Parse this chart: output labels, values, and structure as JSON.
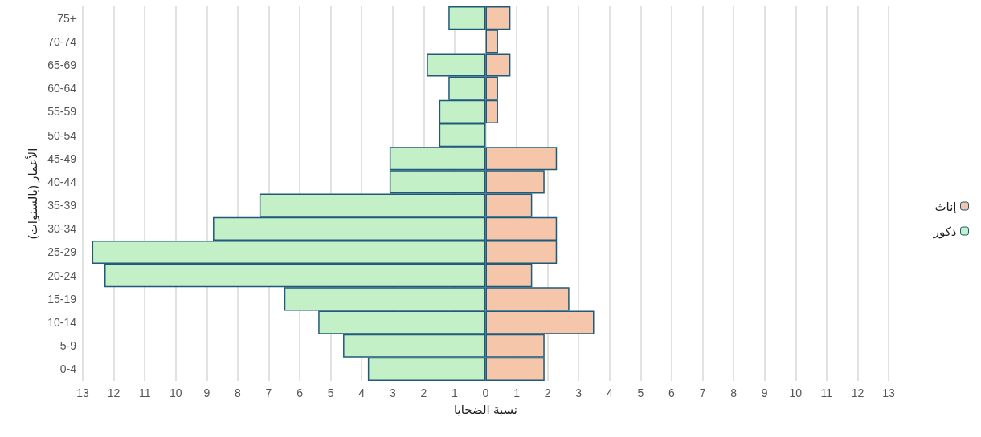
{
  "chart_data": {
    "type": "bar",
    "orientation": "horizontal",
    "stacked": true,
    "xlabel": "نسبة الضحايا",
    "ylabel": "الأعمار (بالسنوات)",
    "categories": [
      "75+",
      "70-74",
      "65-69",
      "60-64",
      "55-59",
      "50-54",
      "45-49",
      "40-44",
      "35-39",
      "30-34",
      "25-29",
      "20-24",
      "15-19",
      "10-14",
      "5-9",
      "0-4"
    ],
    "series": [
      {
        "name": "ذكور",
        "color": "#c4f0c8",
        "values": [
          -1.2,
          0,
          -1.9,
          -1.2,
          -1.5,
          -1.5,
          -3.1,
          -3.1,
          -7.3,
          -8.8,
          -12.7,
          -12.3,
          -6.5,
          -5.4,
          -4.6,
          -3.8
        ]
      },
      {
        "name": "إناث",
        "color": "#f5c6aa",
        "values": [
          0.8,
          0.4,
          0.8,
          0.4,
          0.4,
          0,
          2.3,
          1.9,
          1.5,
          2.3,
          2.3,
          1.5,
          2.7,
          3.5,
          1.9,
          1.9
        ]
      }
    ],
    "xlim": [
      -13,
      13
    ],
    "xticks": [
      {
        "value": -13,
        "label": "13"
      },
      {
        "value": -12,
        "label": "12"
      },
      {
        "value": -11,
        "label": "11"
      },
      {
        "value": -10,
        "label": "10"
      },
      {
        "value": -9,
        "label": "9"
      },
      {
        "value": -8,
        "label": "8"
      },
      {
        "value": -7,
        "label": "7"
      },
      {
        "value": -6,
        "label": "6"
      },
      {
        "value": -5,
        "label": "5"
      },
      {
        "value": -4,
        "label": "4"
      },
      {
        "value": -3,
        "label": "3"
      },
      {
        "value": -2,
        "label": "2"
      },
      {
        "value": -1,
        "label": "1"
      },
      0,
      1,
      2,
      3,
      4,
      5,
      6,
      7,
      8,
      9,
      10,
      11,
      12,
      13
    ],
    "grid": "x",
    "legend": "right"
  }
}
